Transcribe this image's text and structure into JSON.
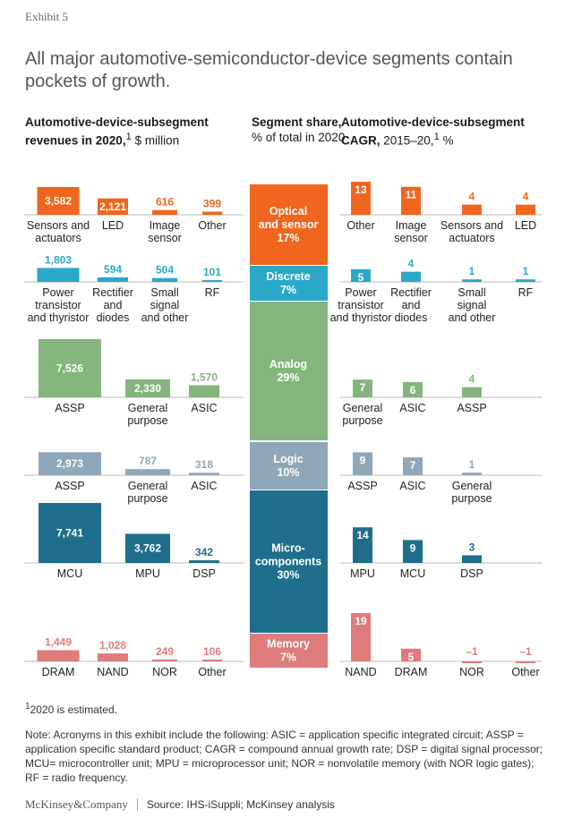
{
  "exhibit": "Exhibit 5",
  "title": "All major automotive-semiconductor-device segments contain pockets of growth.",
  "headers": {
    "left_bold": "Automotive-device-subsegment revenues in 2020,",
    "left_sup": "1",
    "left_rest": " $ million",
    "mid_bold": "Segment share,",
    "mid_rest": " % of total in 2020",
    "right_bold": "Automotive-device-subsegment CAGR,",
    "right_rest": " 2015–20,",
    "right_sup": "1",
    "right_unit": " %"
  },
  "footnote_sup": "1",
  "footnote": "2020 is estimated.",
  "note": "Note: Acronyms in this exhibit include the following: ASIC = application specific integrated circuit; ASSP = application specific standard product; CAGR = compound annual growth rate; DSP = digital signal processor; MCU= microcontroller unit; MPU = microprocessor unit; NOR = nonvolatile memory (with NOR logic gates); RF = radio frequency.",
  "brand": "McKinsey&Company",
  "source": "Source: IHS-iSuppli; McKinsey analysis",
  "colors": {
    "optical": "#f0661e",
    "discrete": "#2aa8c8",
    "analog": "#84b57c",
    "logic": "#8fa7b8",
    "micro": "#1f6e8c",
    "memory": "#de7b7b"
  },
  "chart_data": {
    "type": "bar",
    "units": {
      "revenue": "$ million",
      "share": "% of total in 2020",
      "cagr": "%"
    },
    "segments": [
      {
        "name": "Optical and sensor",
        "label": [
          "Optical",
          "and sensor"
        ],
        "share_label": "17%",
        "share": 17,
        "color_key": "optical",
        "revenue": [
          {
            "category": [
              "Sensors and",
              "actuators"
            ],
            "value": 3582,
            "label": "3,582"
          },
          {
            "category": [
              "LED"
            ],
            "value": 2121,
            "label": "2,121"
          },
          {
            "category": [
              "Image",
              "sensor"
            ],
            "value": 616,
            "label": "616"
          },
          {
            "category": [
              "Other"
            ],
            "value": 399,
            "label": "399"
          }
        ],
        "cagr": [
          {
            "category": [
              "Other"
            ],
            "value": 13,
            "label": "13"
          },
          {
            "category": [
              "Image",
              "sensor"
            ],
            "value": 11,
            "label": "11"
          },
          {
            "category": [
              "Sensors and",
              "actuators"
            ],
            "value": 4,
            "label": "4"
          },
          {
            "category": [
              "LED"
            ],
            "value": 4,
            "label": "4"
          }
        ]
      },
      {
        "name": "Discrete",
        "label": [
          "Discrete"
        ],
        "share_label": "7%",
        "share": 7,
        "color_key": "discrete",
        "revenue": [
          {
            "category": [
              "Power",
              "transistor",
              "and thyristor"
            ],
            "value": 1803,
            "label": "1,803"
          },
          {
            "category": [
              "Rectifier",
              "and",
              "diodes"
            ],
            "value": 594,
            "label": "594"
          },
          {
            "category": [
              "Small",
              "signal",
              "and other"
            ],
            "value": 504,
            "label": "504"
          },
          {
            "category": [
              "RF"
            ],
            "value": 101,
            "label": "101"
          }
        ],
        "cagr": [
          {
            "category": [
              "Power",
              "transistor",
              "and thyristor"
            ],
            "value": 5,
            "label": "5"
          },
          {
            "category": [
              "Rectifier",
              "and",
              "diodes"
            ],
            "value": 4,
            "label": "4"
          },
          {
            "category": [
              "Small",
              "signal",
              "and other"
            ],
            "value": 1,
            "label": "1"
          },
          {
            "category": [
              "RF"
            ],
            "value": 1,
            "label": "1"
          }
        ]
      },
      {
        "name": "Analog",
        "label": [
          "Analog"
        ],
        "share_label": "29%",
        "share": 29,
        "color_key": "analog",
        "revenue": [
          {
            "category": [
              "ASSP"
            ],
            "value": 7526,
            "label": "7,526"
          },
          {
            "category": [
              "General",
              "purpose"
            ],
            "value": 2330,
            "label": "2,330"
          },
          {
            "category": [
              "ASIC"
            ],
            "value": 1570,
            "label": "1,570"
          }
        ],
        "cagr": [
          {
            "category": [
              "General",
              "purpose"
            ],
            "value": 7,
            "label": "7"
          },
          {
            "category": [
              "ASIC"
            ],
            "value": 6,
            "label": "6"
          },
          {
            "category": [
              "ASSP"
            ],
            "value": 4,
            "label": "4"
          }
        ]
      },
      {
        "name": "Logic",
        "label": [
          "Logic"
        ],
        "share_label": "10%",
        "share": 10,
        "color_key": "logic",
        "revenue": [
          {
            "category": [
              "ASSP"
            ],
            "value": 2973,
            "label": "2,973"
          },
          {
            "category": [
              "General",
              "purpose"
            ],
            "value": 787,
            "label": "787"
          },
          {
            "category": [
              "ASIC"
            ],
            "value": 318,
            "label": "318"
          }
        ],
        "cagr": [
          {
            "category": [
              "ASSP"
            ],
            "value": 9,
            "label": "9"
          },
          {
            "category": [
              "ASIC"
            ],
            "value": 7,
            "label": "7"
          },
          {
            "category": [
              "General",
              "purpose"
            ],
            "value": 1,
            "label": "1"
          }
        ]
      },
      {
        "name": "Micro-components",
        "label": [
          "Micro-",
          "components"
        ],
        "share_label": "30%",
        "share": 30,
        "color_key": "micro",
        "revenue": [
          {
            "category": [
              "MCU"
            ],
            "value": 7741,
            "label": "7,741"
          },
          {
            "category": [
              "MPU"
            ],
            "value": 3762,
            "label": "3,762"
          },
          {
            "category": [
              "DSP"
            ],
            "value": 342,
            "label": "342"
          }
        ],
        "cagr": [
          {
            "category": [
              "MPU"
            ],
            "value": 14,
            "label": "14"
          },
          {
            "category": [
              "MCU"
            ],
            "value": 9,
            "label": "9"
          },
          {
            "category": [
              "DSP"
            ],
            "value": 3,
            "label": "3"
          }
        ]
      },
      {
        "name": "Memory",
        "label": [
          "Memory"
        ],
        "share_label": "7%",
        "share": 7,
        "color_key": "memory",
        "revenue": [
          {
            "category": [
              "DRAM"
            ],
            "value": 1449,
            "label": "1,449"
          },
          {
            "category": [
              "NAND"
            ],
            "value": 1028,
            "label": "1,028"
          },
          {
            "category": [
              "NOR"
            ],
            "value": 249,
            "label": "249"
          },
          {
            "category": [
              "Other"
            ],
            "value": 106,
            "label": "106"
          }
        ],
        "cagr": [
          {
            "category": [
              "NAND"
            ],
            "value": 19,
            "label": "19"
          },
          {
            "category": [
              "DRAM"
            ],
            "value": 5,
            "label": "5"
          },
          {
            "category": [
              "NOR"
            ],
            "value": -1,
            "label": "–1"
          },
          {
            "category": [
              "Other"
            ],
            "value": -1,
            "label": "–1"
          }
        ]
      }
    ]
  }
}
